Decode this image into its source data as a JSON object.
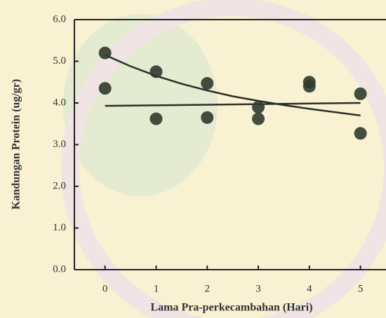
{
  "chart_data": {
    "type": "scatter",
    "xlabel": "Lama Pra-perkecambahan (Hari)",
    "ylabel": "Kandungan Protein (ug/gr)",
    "xlim": [
      -0.6,
      5.5
    ],
    "ylim": [
      0,
      6
    ],
    "xticks": [
      0,
      1,
      2,
      3,
      4,
      5
    ],
    "yticks": [
      {
        "value": 0,
        "label": "0.0"
      },
      {
        "value": 1,
        "label": "1.0"
      },
      {
        "value": 2,
        "label": "2.0"
      },
      {
        "value": 3,
        "label": "3.0"
      },
      {
        "value": 4,
        "label": "4.0"
      },
      {
        "value": 5,
        "label": "5.0"
      },
      {
        "value": 6,
        "label": "6.0"
      }
    ],
    "series": [
      {
        "color": "#2f3b2c",
        "x": [
          0,
          0,
          1,
          1,
          2,
          2,
          3,
          3,
          4,
          4,
          5,
          5
        ],
        "values": [
          5.2,
          4.35,
          4.75,
          3.62,
          4.47,
          3.65,
          3.9,
          3.62,
          4.5,
          4.4,
          4.22,
          3.27
        ]
      }
    ],
    "trendlines": [
      {
        "color": "#2a2f2a",
        "x": [
          0,
          5
        ],
        "values": [
          3.93,
          4.0
        ]
      },
      {
        "color": "#2a2f2a",
        "x": [
          0,
          0.5,
          1,
          1.5,
          2,
          2.5,
          3,
          3.5,
          4,
          4.5,
          5
        ],
        "values": [
          5.15,
          4.88,
          4.65,
          4.46,
          4.3,
          4.16,
          4.05,
          3.95,
          3.86,
          3.78,
          3.7
        ]
      }
    ]
  }
}
